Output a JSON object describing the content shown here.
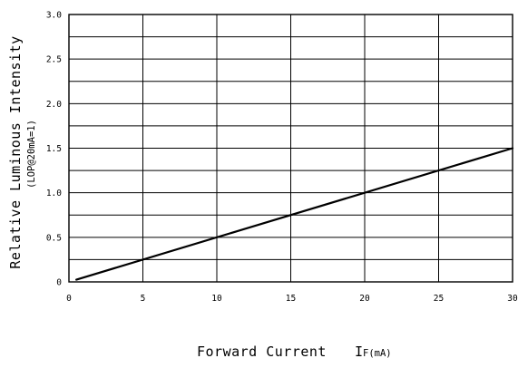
{
  "chart_data": {
    "type": "line",
    "x": [
      0.5,
      30
    ],
    "series": [
      {
        "values": [
          0.025,
          1.5
        ]
      }
    ],
    "xlim": [
      0,
      30
    ],
    "ylim": [
      0,
      3.0
    ],
    "x_ticks": [
      "0",
      "5",
      "10",
      "15",
      "20",
      "25",
      "30"
    ],
    "y_ticks": [
      "0",
      "0.5",
      "1.0",
      "1.5",
      "2.0",
      "2.5",
      "3.0"
    ],
    "ylabel": "Relative Luminous Intensity",
    "ylabel_sub": "(LOP@20mA=1)",
    "xlabel": "Forward Current",
    "xlabel_symbol": "I",
    "xlabel_sub": "F(mA)",
    "grid": true,
    "line_color": "#000000",
    "grid_color": "#000000"
  }
}
